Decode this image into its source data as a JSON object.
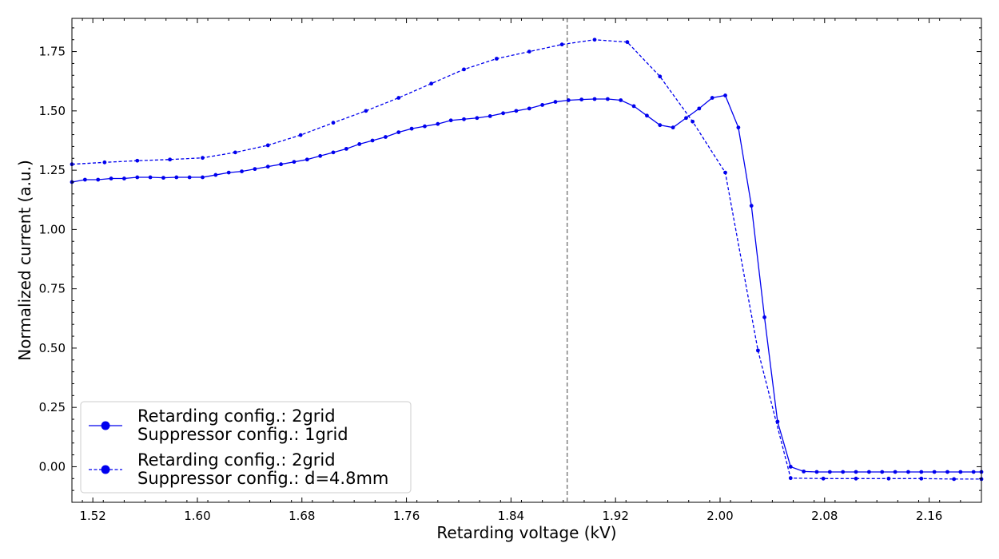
{
  "chart_data": {
    "type": "line",
    "xlabel": "Retarding voltage (kV)",
    "ylabel": "Normalized current (a.u.)",
    "xlim": [
      1.504,
      2.2
    ],
    "ylim": [
      -0.15,
      1.89
    ],
    "x_ticks": [
      1.52,
      1.6,
      1.68,
      1.76,
      1.84,
      1.92,
      2.0,
      2.08,
      2.16
    ],
    "x_tick_labels": [
      "1.52",
      "1.60",
      "1.68",
      "1.76",
      "1.84",
      "1.92",
      "2.00",
      "2.08",
      "2.16"
    ],
    "y_ticks": [
      0.0,
      0.25,
      0.5,
      0.75,
      1.0,
      1.25,
      1.5,
      1.75
    ],
    "y_tick_labels": [
      "0.00",
      "0.25",
      "0.50",
      "0.75",
      "1.00",
      "1.25",
      "1.50",
      "1.75"
    ],
    "vline": {
      "x": 1.883,
      "color": "#808080",
      "style": "dashed"
    },
    "legend_position": "lower-left",
    "colors": {
      "series": "#0000ee",
      "vline": "#808080"
    },
    "legend": [
      {
        "line1": "Retarding config.: 2grid",
        "line2": "Suppressor config.: 1grid",
        "style": "solid"
      },
      {
        "line1": "Retarding config.: 2grid",
        "line2": "Suppressor config.: d=4.8mm",
        "style": "dashed"
      }
    ],
    "series": [
      {
        "style": "solid",
        "x": [
          1.504,
          1.514,
          1.524,
          1.534,
          1.544,
          1.554,
          1.564,
          1.574,
          1.584,
          1.594,
          1.604,
          1.614,
          1.624,
          1.634,
          1.644,
          1.654,
          1.664,
          1.674,
          1.684,
          1.694,
          1.704,
          1.714,
          1.724,
          1.734,
          1.744,
          1.754,
          1.764,
          1.774,
          1.784,
          1.794,
          1.804,
          1.814,
          1.824,
          1.834,
          1.844,
          1.854,
          1.864,
          1.874,
          1.884,
          1.894,
          1.904,
          1.914,
          1.924,
          1.934,
          1.944,
          1.954,
          1.964,
          1.974,
          1.984,
          1.994,
          2.004,
          2.014,
          2.024,
          2.034,
          2.044,
          2.054,
          2.064,
          2.074,
          2.084,
          2.094,
          2.104,
          2.114,
          2.124,
          2.134,
          2.144,
          2.154,
          2.164,
          2.174,
          2.184,
          2.194,
          2.2
        ],
        "y": [
          1.2,
          1.21,
          1.21,
          1.215,
          1.215,
          1.22,
          1.22,
          1.218,
          1.22,
          1.22,
          1.22,
          1.23,
          1.24,
          1.245,
          1.255,
          1.265,
          1.275,
          1.285,
          1.295,
          1.31,
          1.325,
          1.34,
          1.36,
          1.375,
          1.39,
          1.41,
          1.425,
          1.435,
          1.445,
          1.46,
          1.465,
          1.47,
          1.478,
          1.49,
          1.5,
          1.51,
          1.525,
          1.538,
          1.545,
          1.548,
          1.55,
          1.55,
          1.545,
          1.52,
          1.48,
          1.44,
          1.43,
          1.47,
          1.51,
          1.555,
          1.565,
          1.43,
          1.1,
          0.63,
          0.19,
          0.0,
          -0.02,
          -0.022,
          -0.022,
          -0.022,
          -0.022,
          -0.022,
          -0.022,
          -0.022,
          -0.022,
          -0.022,
          -0.022,
          -0.022,
          -0.022,
          -0.022,
          -0.022
        ]
      },
      {
        "style": "dashed",
        "x": [
          1.504,
          1.529,
          1.554,
          1.579,
          1.604,
          1.629,
          1.654,
          1.679,
          1.704,
          1.729,
          1.754,
          1.779,
          1.804,
          1.829,
          1.854,
          1.879,
          1.904,
          1.929,
          1.954,
          1.979,
          2.004,
          2.029,
          2.054,
          2.079,
          2.104,
          2.129,
          2.154,
          2.179,
          2.2
        ],
        "y": [
          1.275,
          1.283,
          1.29,
          1.295,
          1.302,
          1.325,
          1.355,
          1.398,
          1.45,
          1.5,
          1.555,
          1.615,
          1.675,
          1.72,
          1.75,
          1.78,
          1.8,
          1.79,
          1.645,
          1.455,
          1.24,
          0.49,
          -0.048,
          -0.05,
          -0.05,
          -0.05,
          -0.05,
          -0.052,
          -0.052
        ]
      }
    ]
  }
}
